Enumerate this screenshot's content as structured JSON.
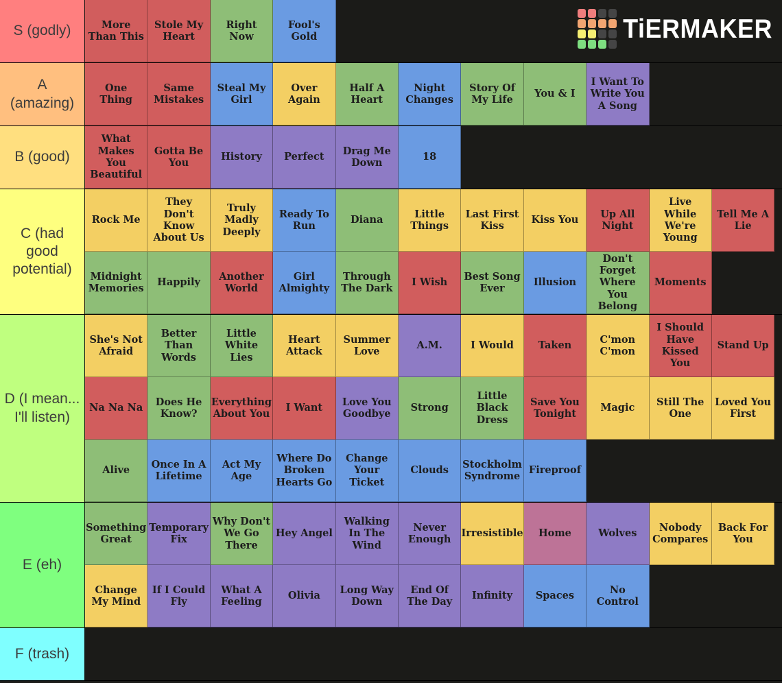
{
  "app": {
    "name": "TierMaker"
  },
  "logo": {
    "text": "TiERMAKER",
    "grid_colors": [
      "#ef7d7d",
      "#ef7d7d",
      "#454545",
      "#454545",
      "#f2a571",
      "#f2a571",
      "#f2a571",
      "#f2a571",
      "#f5ee72",
      "#f5ee72",
      "#454545",
      "#454545",
      "#7edf80",
      "#7edf80",
      "#7edf80",
      "#454545"
    ]
  },
  "palette": {
    "red": "#d15d5d",
    "green": "#8ebe77",
    "blue": "#6a9be2",
    "yellow": "#f3cf63",
    "purple": "#8e7bc5",
    "pink": "#bd7397"
  },
  "tiers": [
    {
      "id": "S",
      "label": "S (godly)",
      "label_color": "#ff7f7f",
      "items": [
        {
          "title": "More Than This",
          "color": "red"
        },
        {
          "title": "Stole My Heart",
          "color": "red"
        },
        {
          "title": "Right Now",
          "color": "green"
        },
        {
          "title": "Fool's Gold",
          "color": "blue"
        }
      ]
    },
    {
      "id": "A",
      "label": "A (amazing)",
      "label_color": "#ffbf7f",
      "items": [
        {
          "title": "One Thing",
          "color": "red"
        },
        {
          "title": "Same Mistakes",
          "color": "red"
        },
        {
          "title": "Steal My Girl",
          "color": "blue"
        },
        {
          "title": "Over Again",
          "color": "yellow"
        },
        {
          "title": "Half A Heart",
          "color": "green"
        },
        {
          "title": "Night Changes",
          "color": "blue"
        },
        {
          "title": "Story Of My Life",
          "color": "green"
        },
        {
          "title": "You & I",
          "color": "green"
        },
        {
          "title": "I Want To Write You A Song",
          "color": "purple"
        }
      ]
    },
    {
      "id": "B",
      "label": "B (good)",
      "label_color": "#ffdf7f",
      "items": [
        {
          "title": "What Makes You Beautiful",
          "color": "red"
        },
        {
          "title": "Gotta Be You",
          "color": "red"
        },
        {
          "title": "History",
          "color": "purple"
        },
        {
          "title": "Perfect",
          "color": "purple"
        },
        {
          "title": "Drag Me Down",
          "color": "purple"
        },
        {
          "title": "18",
          "color": "blue"
        }
      ]
    },
    {
      "id": "C",
      "label": "C (had good potential)",
      "label_color": "#feff7f",
      "items": [
        {
          "title": "Rock Me",
          "color": "yellow"
        },
        {
          "title": "They Don't Know About Us",
          "color": "yellow"
        },
        {
          "title": "Truly Madly Deeply",
          "color": "yellow"
        },
        {
          "title": "Ready To Run",
          "color": "blue"
        },
        {
          "title": "Diana",
          "color": "green"
        },
        {
          "title": "Little Things",
          "color": "yellow"
        },
        {
          "title": "Last First Kiss",
          "color": "yellow"
        },
        {
          "title": "Kiss You",
          "color": "yellow"
        },
        {
          "title": "Up All Night",
          "color": "red"
        },
        {
          "title": "Live While We're Young",
          "color": "yellow"
        },
        {
          "title": "Tell Me A Lie",
          "color": "red"
        },
        {
          "title": "Midnight Memories",
          "color": "green"
        },
        {
          "title": "Happily",
          "color": "green"
        },
        {
          "title": "Another World",
          "color": "red"
        },
        {
          "title": "Girl Almighty",
          "color": "blue"
        },
        {
          "title": "Through The Dark",
          "color": "green"
        },
        {
          "title": "I Wish",
          "color": "red"
        },
        {
          "title": "Best Song Ever",
          "color": "green"
        },
        {
          "title": "Illusion",
          "color": "blue"
        },
        {
          "title": "Don't Forget Where You Belong",
          "color": "green"
        },
        {
          "title": "Moments",
          "color": "red"
        }
      ]
    },
    {
      "id": "D",
      "label": "D (I mean... I'll listen)",
      "label_color": "#bfff7f",
      "items": [
        {
          "title": "She's Not Afraid",
          "color": "yellow"
        },
        {
          "title": "Better Than Words",
          "color": "green"
        },
        {
          "title": "Little White Lies",
          "color": "green"
        },
        {
          "title": "Heart Attack",
          "color": "yellow"
        },
        {
          "title": "Summer Love",
          "color": "yellow"
        },
        {
          "title": "A.M.",
          "color": "purple"
        },
        {
          "title": "I Would",
          "color": "yellow"
        },
        {
          "title": "Taken",
          "color": "red"
        },
        {
          "title": "C'mon C'mon",
          "color": "yellow"
        },
        {
          "title": "I Should Have Kissed You",
          "color": "red"
        },
        {
          "title": "Stand Up",
          "color": "red"
        },
        {
          "title": "Na Na Na",
          "color": "red"
        },
        {
          "title": "Does He Know?",
          "color": "green"
        },
        {
          "title": "Everything About You",
          "color": "red"
        },
        {
          "title": "I Want",
          "color": "red"
        },
        {
          "title": "Love You Goodbye",
          "color": "purple"
        },
        {
          "title": "Strong",
          "color": "green"
        },
        {
          "title": "Little Black Dress",
          "color": "green"
        },
        {
          "title": "Save You Tonight",
          "color": "red"
        },
        {
          "title": "Magic",
          "color": "yellow"
        },
        {
          "title": "Still The One",
          "color": "yellow"
        },
        {
          "title": "Loved You First",
          "color": "yellow"
        },
        {
          "title": "Alive",
          "color": "green"
        },
        {
          "title": "Once In A Lifetime",
          "color": "blue"
        },
        {
          "title": "Act My Age",
          "color": "blue"
        },
        {
          "title": "Where Do Broken Hearts Go",
          "color": "blue"
        },
        {
          "title": "Change Your Ticket",
          "color": "blue"
        },
        {
          "title": "Clouds",
          "color": "blue"
        },
        {
          "title": "Stockholm Syndrome",
          "color": "blue"
        },
        {
          "title": "Fireproof",
          "color": "blue"
        }
      ]
    },
    {
      "id": "E",
      "label": "E (eh)",
      "label_color": "#7fff7f",
      "items": [
        {
          "title": "Something Great",
          "color": "green"
        },
        {
          "title": "Temporary Fix",
          "color": "purple"
        },
        {
          "title": "Why Don't We Go There",
          "color": "green"
        },
        {
          "title": "Hey Angel",
          "color": "purple"
        },
        {
          "title": "Walking In The Wind",
          "color": "purple"
        },
        {
          "title": "Never Enough",
          "color": "purple"
        },
        {
          "title": "Irresistible",
          "color": "yellow"
        },
        {
          "title": "Home",
          "color": "pink"
        },
        {
          "title": "Wolves",
          "color": "purple"
        },
        {
          "title": "Nobody Compares",
          "color": "yellow"
        },
        {
          "title": "Back For You",
          "color": "yellow"
        },
        {
          "title": "Change My Mind",
          "color": "yellow"
        },
        {
          "title": "If I Could Fly",
          "color": "purple"
        },
        {
          "title": "What A Feeling",
          "color": "purple"
        },
        {
          "title": "Olivia",
          "color": "purple"
        },
        {
          "title": "Long Way Down",
          "color": "purple"
        },
        {
          "title": "End Of The Day",
          "color": "purple"
        },
        {
          "title": "Infinity",
          "color": "purple"
        },
        {
          "title": "Spaces",
          "color": "blue"
        },
        {
          "title": "No Control",
          "color": "blue"
        }
      ]
    },
    {
      "id": "F",
      "label": "F (trash)",
      "label_color": "#7fffff",
      "min_height": 76,
      "items": []
    }
  ]
}
